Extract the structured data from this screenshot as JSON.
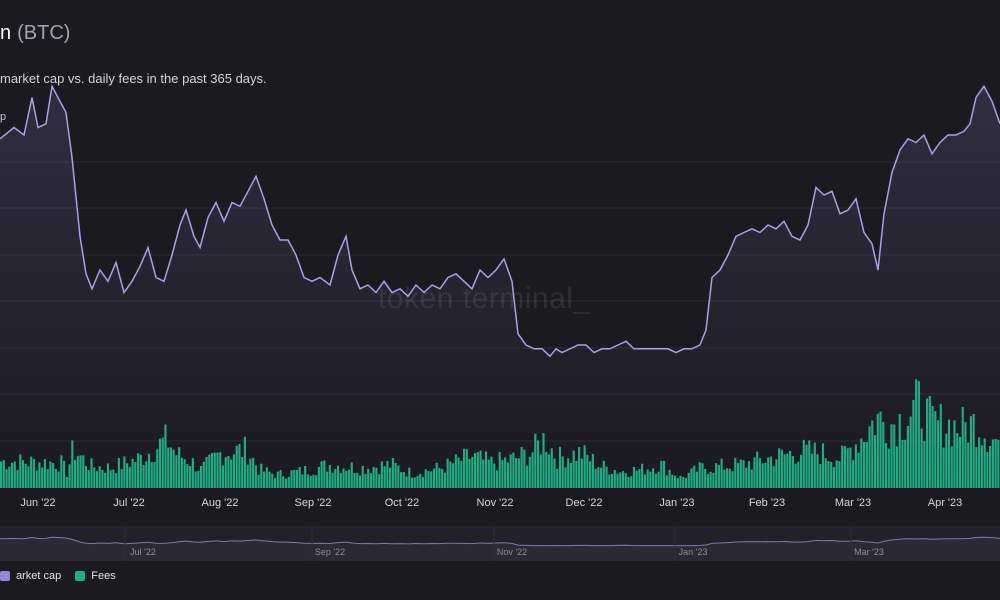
{
  "header": {
    "title_name": "n",
    "title_ticker": "(BTC)",
    "subtitle": "market cap vs. daily fees in the past 365 days.",
    "y_axis_label": "p",
    "watermark": "token terminal_"
  },
  "legend": [
    {
      "label": "arket cap",
      "color": "#8f88d6"
    },
    {
      "label": "Fees",
      "color": "#1fae83"
    }
  ],
  "colors": {
    "background": "#1b1a1f",
    "grid": "#2b2a30",
    "line": "#a8a1ea",
    "bars": "#1fae83",
    "navigator_line": "#7e79b8"
  },
  "chart_data": {
    "type": "bar",
    "title": "",
    "x_range": [
      "2022-05-20",
      "2023-04-26"
    ],
    "x_ticks": [
      "Jun '22",
      "Jul '22",
      "Aug '22",
      "Sep '22",
      "Oct '22",
      "Nov '22",
      "Dec '22",
      "Jan '23",
      "Feb '23",
      "Mar '23",
      "Apr '23"
    ],
    "navigator_ticks": [
      "Jul '22",
      "Sep '22",
      "Nov '22",
      "Jan '23",
      "Mar '23"
    ],
    "series": [
      {
        "name": "arket cap",
        "type": "line",
        "values": [
          [
            0,
            0.43
          ],
          [
            14,
            0.46
          ],
          [
            24,
            0.44
          ],
          [
            32,
            0.54
          ],
          [
            38,
            0.46
          ],
          [
            46,
            0.47
          ],
          [
            52,
            0.57
          ],
          [
            60,
            0.53
          ],
          [
            66,
            0.5
          ],
          [
            72,
            0.38
          ],
          [
            80,
            0.17
          ],
          [
            86,
            0.07
          ],
          [
            92,
            0.03
          ],
          [
            100,
            0.08
          ],
          [
            108,
            0.05
          ],
          [
            116,
            0.1
          ],
          [
            124,
            0.02
          ],
          [
            132,
            0.05
          ],
          [
            140,
            0.09
          ],
          [
            148,
            0.14
          ],
          [
            156,
            0.06
          ],
          [
            164,
            0.05
          ],
          [
            172,
            0.12
          ],
          [
            180,
            0.2
          ],
          [
            186,
            0.24
          ],
          [
            194,
            0.17
          ],
          [
            200,
            0.14
          ],
          [
            208,
            0.22
          ],
          [
            216,
            0.26
          ],
          [
            224,
            0.21
          ],
          [
            232,
            0.26
          ],
          [
            240,
            0.25
          ],
          [
            248,
            0.29
          ],
          [
            256,
            0.33
          ],
          [
            264,
            0.27
          ],
          [
            272,
            0.2
          ],
          [
            280,
            0.16
          ],
          [
            288,
            0.16
          ],
          [
            296,
            0.12
          ],
          [
            304,
            0.06
          ],
          [
            312,
            0.05
          ],
          [
            320,
            0.06
          ],
          [
            330,
            0.04
          ],
          [
            338,
            0.12
          ],
          [
            346,
            0.17
          ],
          [
            352,
            0.08
          ],
          [
            360,
            0.03
          ],
          [
            368,
            0.04
          ],
          [
            376,
            0.02
          ],
          [
            384,
            0.05
          ],
          [
            392,
            0.02
          ],
          [
            400,
            0.03
          ],
          [
            408,
            0.01
          ],
          [
            416,
            0.04
          ],
          [
            424,
            0.02
          ],
          [
            432,
            0.04
          ],
          [
            440,
            0.03
          ],
          [
            448,
            0.06
          ],
          [
            456,
            0.07
          ],
          [
            464,
            0.05
          ],
          [
            472,
            0.03
          ],
          [
            480,
            0.08
          ],
          [
            488,
            0.06
          ],
          [
            496,
            0.08
          ],
          [
            504,
            0.11
          ],
          [
            512,
            0.05
          ],
          [
            518,
            -0.09
          ],
          [
            526,
            -0.12
          ],
          [
            534,
            -0.13
          ],
          [
            542,
            -0.13
          ],
          [
            550,
            -0.15
          ],
          [
            556,
            -0.13
          ],
          [
            562,
            -0.14
          ],
          [
            570,
            -0.13
          ],
          [
            578,
            -0.12
          ],
          [
            586,
            -0.12
          ],
          [
            594,
            -0.14
          ],
          [
            602,
            -0.13
          ],
          [
            610,
            -0.13
          ],
          [
            618,
            -0.12
          ],
          [
            626,
            -0.11
          ],
          [
            634,
            -0.13
          ],
          [
            642,
            -0.13
          ],
          [
            650,
            -0.13
          ],
          [
            660,
            -0.13
          ],
          [
            668,
            -0.13
          ],
          [
            676,
            -0.14
          ],
          [
            684,
            -0.13
          ],
          [
            692,
            -0.13
          ],
          [
            700,
            -0.12
          ],
          [
            706,
            -0.08
          ],
          [
            712,
            0.06
          ],
          [
            720,
            0.08
          ],
          [
            728,
            0.12
          ],
          [
            736,
            0.17
          ],
          [
            744,
            0.18
          ],
          [
            752,
            0.19
          ],
          [
            760,
            0.18
          ],
          [
            768,
            0.2
          ],
          [
            776,
            0.19
          ],
          [
            784,
            0.21
          ],
          [
            792,
            0.17
          ],
          [
            800,
            0.16
          ],
          [
            808,
            0.2
          ],
          [
            816,
            0.3
          ],
          [
            824,
            0.28
          ],
          [
            832,
            0.29
          ],
          [
            840,
            0.23
          ],
          [
            848,
            0.24
          ],
          [
            856,
            0.27
          ],
          [
            864,
            0.18
          ],
          [
            872,
            0.15
          ],
          [
            878,
            0.08
          ],
          [
            884,
            0.23
          ],
          [
            892,
            0.34
          ],
          [
            900,
            0.4
          ],
          [
            908,
            0.43
          ],
          [
            916,
            0.42
          ],
          [
            924,
            0.44
          ],
          [
            932,
            0.39
          ],
          [
            940,
            0.42
          ],
          [
            948,
            0.44
          ],
          [
            956,
            0.44
          ],
          [
            964,
            0.45
          ],
          [
            970,
            0.47
          ],
          [
            976,
            0.54
          ],
          [
            984,
            0.57
          ],
          [
            992,
            0.53
          ],
          [
            1000,
            0.47
          ]
        ]
      },
      {
        "name": "Fees",
        "type": "bar",
        "envelope": [
          [
            0,
            0.32
          ],
          [
            60,
            0.3
          ],
          [
            66,
            0.18
          ],
          [
            72,
            0.46
          ],
          [
            90,
            0.26
          ],
          [
            110,
            0.24
          ],
          [
            140,
            0.36
          ],
          [
            166,
            0.58
          ],
          [
            176,
            0.4
          ],
          [
            188,
            0.34
          ],
          [
            200,
            0.22
          ],
          [
            220,
            0.42
          ],
          [
            246,
            0.46
          ],
          [
            258,
            0.22
          ],
          [
            276,
            0.16
          ],
          [
            300,
            0.2
          ],
          [
            330,
            0.28
          ],
          [
            360,
            0.24
          ],
          [
            390,
            0.28
          ],
          [
            410,
            0.18
          ],
          [
            440,
            0.24
          ],
          [
            470,
            0.38
          ],
          [
            490,
            0.3
          ],
          [
            510,
            0.34
          ],
          [
            530,
            0.42
          ],
          [
            544,
            0.6
          ],
          [
            556,
            0.36
          ],
          [
            580,
            0.42
          ],
          [
            600,
            0.26
          ],
          [
            620,
            0.2
          ],
          [
            640,
            0.22
          ],
          [
            660,
            0.28
          ],
          [
            680,
            0.12
          ],
          [
            700,
            0.24
          ],
          [
            740,
            0.28
          ],
          [
            770,
            0.36
          ],
          [
            800,
            0.44
          ],
          [
            820,
            0.42
          ],
          [
            840,
            0.36
          ],
          [
            860,
            0.6
          ],
          [
            876,
            0.84
          ],
          [
            888,
            0.76
          ],
          [
            904,
            0.84
          ],
          [
            918,
            1.0
          ],
          [
            930,
            0.78
          ],
          [
            946,
            0.76
          ],
          [
            960,
            0.72
          ],
          [
            976,
            0.78
          ],
          [
            992,
            0.58
          ],
          [
            1000,
            0.56
          ]
        ]
      }
    ]
  }
}
